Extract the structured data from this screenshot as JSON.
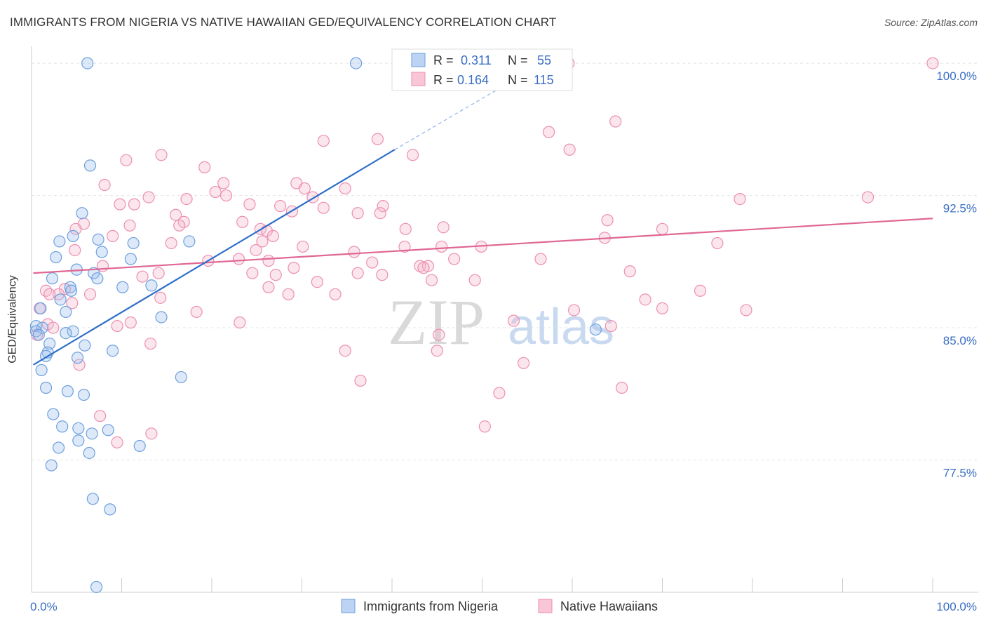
{
  "title": "IMMIGRANTS FROM NIGERIA VS NATIVE HAWAIIAN GED/EQUIVALENCY CORRELATION CHART",
  "source": "Source: ZipAtlas.com",
  "watermark": {
    "zip": "ZIP",
    "atlas": "atlas"
  },
  "legend_top": [
    {
      "r_label": "R =",
      "r_value": "0.311",
      "n_label": "N =",
      "n_value": "55"
    },
    {
      "r_label": "R =",
      "r_value": "0.164",
      "n_label": "N =",
      "n_value": "115"
    }
  ],
  "chart_data": {
    "type": "scatter",
    "title": "IMMIGRANTS FROM NIGERIA VS NATIVE HAWAIIAN GED/EQUIVALENCY CORRELATION CHART",
    "xlabel": "",
    "ylabel": "GED/Equivalency",
    "xlim": [
      0,
      100
    ],
    "ylim": [
      70.0,
      100.8
    ],
    "x_tick_labels": [
      "0.0%",
      "100.0%"
    ],
    "y_ticks": [
      77.5,
      85.0,
      92.5,
      100.0
    ],
    "y_tick_labels": [
      "77.5%",
      "85.0%",
      "92.5%",
      "100.0%"
    ],
    "grid": true,
    "legend_position": "bottom-center",
    "colors": {
      "nigeria": "#6c9fde",
      "hawaiian": "#ec8fb0",
      "nigeria_line": "#2f6fc9",
      "hawaiian_line": "#e06794",
      "tick": "#3a6fc4"
    },
    "series": [
      {
        "name": "Immigrants from Nigeria",
        "r": 0.311,
        "n": 55,
        "trend": {
          "x0": 0.2,
          "y0": 82.9,
          "x1": 40.3,
          "y1": 95.1,
          "dash_to_x": 52.0,
          "dash_to_y": 98.6
        },
        "points": [
          [
            6.2,
            100
          ],
          [
            36.0,
            100
          ],
          [
            6.5,
            94.2
          ],
          [
            5.6,
            91.5
          ],
          [
            4.6,
            90.2
          ],
          [
            3.1,
            89.9
          ],
          [
            7.8,
            89.3
          ],
          [
            2.7,
            89.0
          ],
          [
            11.3,
            89.8
          ],
          [
            11.0,
            88.9
          ],
          [
            7.4,
            90.0
          ],
          [
            2.3,
            87.8
          ],
          [
            6.9,
            88.1
          ],
          [
            5.0,
            88.3
          ],
          [
            7.3,
            87.8
          ],
          [
            4.3,
            87.3
          ],
          [
            4.4,
            87.1
          ],
          [
            10.1,
            87.3
          ],
          [
            13.3,
            87.4
          ],
          [
            3.2,
            86.6
          ],
          [
            1.0,
            86.1
          ],
          [
            3.8,
            85.9
          ],
          [
            0.5,
            85.1
          ],
          [
            1.2,
            85.0
          ],
          [
            0.5,
            84.8
          ],
          [
            0.8,
            84.6
          ],
          [
            4.6,
            84.8
          ],
          [
            3.8,
            84.7
          ],
          [
            14.4,
            85.6
          ],
          [
            2.0,
            84.1
          ],
          [
            5.9,
            84.0
          ],
          [
            1.8,
            83.6
          ],
          [
            1.6,
            83.4
          ],
          [
            9.0,
            83.7
          ],
          [
            5.1,
            83.3
          ],
          [
            1.1,
            82.6
          ],
          [
            16.6,
            82.2
          ],
          [
            1.6,
            81.6
          ],
          [
            4.0,
            81.4
          ],
          [
            5.8,
            81.2
          ],
          [
            2.4,
            80.1
          ],
          [
            3.4,
            79.4
          ],
          [
            5.2,
            79.3
          ],
          [
            8.5,
            79.2
          ],
          [
            6.7,
            79.0
          ],
          [
            5.2,
            78.6
          ],
          [
            3.0,
            78.2
          ],
          [
            12.0,
            78.3
          ],
          [
            6.4,
            77.9
          ],
          [
            2.2,
            77.2
          ],
          [
            6.8,
            75.3
          ],
          [
            8.7,
            74.7
          ],
          [
            7.2,
            70.3
          ],
          [
            17.5,
            89.9
          ],
          [
            62.6,
            84.9
          ]
        ]
      },
      {
        "name": "Native Hawaiians",
        "r": 0.164,
        "n": 115,
        "trend": {
          "x0": 0.2,
          "y0": 88.1,
          "x1": 100,
          "y1": 91.2
        },
        "points": [
          [
            59.6,
            100
          ],
          [
            100,
            100
          ],
          [
            64.8,
            96.7
          ],
          [
            57.4,
            96.1
          ],
          [
            32.4,
            95.6
          ],
          [
            38.4,
            95.7
          ],
          [
            59.7,
            95.1
          ],
          [
            10.5,
            94.5
          ],
          [
            14.4,
            94.8
          ],
          [
            42.3,
            94.8
          ],
          [
            19.2,
            94.1
          ],
          [
            21.3,
            93.2
          ],
          [
            29.4,
            93.2
          ],
          [
            8.1,
            93.1
          ],
          [
            20.4,
            92.7
          ],
          [
            21.6,
            92.5
          ],
          [
            30.3,
            92.9
          ],
          [
            34.8,
            92.9
          ],
          [
            13.0,
            92.4
          ],
          [
            17.2,
            92.3
          ],
          [
            31.2,
            92.4
          ],
          [
            78.6,
            92.3
          ],
          [
            92.8,
            92.4
          ],
          [
            9.8,
            92.0
          ],
          [
            11.4,
            92.0
          ],
          [
            24.2,
            92.0
          ],
          [
            27.6,
            91.9
          ],
          [
            39.0,
            91.9
          ],
          [
            28.9,
            91.6
          ],
          [
            32.4,
            91.8
          ],
          [
            36.2,
            91.5
          ],
          [
            38.7,
            91.5
          ],
          [
            16.0,
            91.4
          ],
          [
            23.4,
            91.0
          ],
          [
            16.9,
            91.0
          ],
          [
            16.4,
            90.8
          ],
          [
            10.9,
            90.8
          ],
          [
            25.4,
            90.6
          ],
          [
            26.1,
            90.5
          ],
          [
            45.7,
            90.7
          ],
          [
            41.5,
            90.6
          ],
          [
            63.9,
            91.1
          ],
          [
            70.0,
            90.6
          ],
          [
            5.8,
            90.9
          ],
          [
            9.0,
            90.2
          ],
          [
            26.8,
            90.2
          ],
          [
            25.6,
            89.9
          ],
          [
            49.9,
            89.6
          ],
          [
            63.6,
            90.1
          ],
          [
            76.1,
            89.8
          ],
          [
            15.5,
            89.8
          ],
          [
            30.1,
            89.6
          ],
          [
            41.4,
            89.6
          ],
          [
            45.5,
            89.6
          ],
          [
            24.9,
            89.4
          ],
          [
            35.8,
            89.3
          ],
          [
            4.9,
            90.6
          ],
          [
            4.8,
            89.4
          ],
          [
            19.6,
            88.8
          ],
          [
            23.0,
            88.9
          ],
          [
            26.3,
            88.8
          ],
          [
            37.8,
            88.7
          ],
          [
            43.1,
            88.5
          ],
          [
            56.5,
            88.9
          ],
          [
            46.9,
            88.9
          ],
          [
            44.0,
            88.5
          ],
          [
            43.5,
            88.4
          ],
          [
            29.1,
            88.4
          ],
          [
            7.9,
            88.5
          ],
          [
            14.1,
            88.1
          ],
          [
            24.5,
            88.1
          ],
          [
            27.1,
            88.0
          ],
          [
            36.2,
            88.1
          ],
          [
            38.9,
            88.0
          ],
          [
            66.4,
            88.2
          ],
          [
            12.3,
            87.9
          ],
          [
            31.7,
            87.6
          ],
          [
            44.4,
            87.7
          ],
          [
            49.2,
            87.7
          ],
          [
            26.3,
            87.3
          ],
          [
            1.6,
            87.1
          ],
          [
            3.7,
            87.2
          ],
          [
            3.0,
            86.9
          ],
          [
            2.0,
            86.9
          ],
          [
            6.5,
            86.9
          ],
          [
            14.3,
            86.7
          ],
          [
            28.5,
            86.9
          ],
          [
            70.0,
            86.1
          ],
          [
            74.2,
            87.1
          ],
          [
            33.7,
            86.9
          ],
          [
            4.5,
            86.4
          ],
          [
            68.1,
            86.6
          ],
          [
            0.9,
            86.1
          ],
          [
            18.3,
            85.9
          ],
          [
            60.2,
            86.0
          ],
          [
            79.3,
            86.0
          ],
          [
            1.8,
            85.2
          ],
          [
            11.0,
            85.3
          ],
          [
            23.1,
            85.3
          ],
          [
            53.5,
            85.4
          ],
          [
            2.4,
            85.0
          ],
          [
            9.5,
            85.1
          ],
          [
            64.3,
            85.1
          ],
          [
            0.6,
            84.6
          ],
          [
            45.2,
            84.6
          ],
          [
            13.2,
            84.1
          ],
          [
            34.8,
            83.7
          ],
          [
            45.0,
            83.7
          ],
          [
            5.3,
            82.9
          ],
          [
            54.6,
            83.0
          ],
          [
            36.5,
            82.0
          ],
          [
            51.9,
            81.3
          ],
          [
            65.5,
            81.6
          ],
          [
            7.6,
            80.0
          ],
          [
            50.3,
            79.4
          ],
          [
            13.3,
            79.0
          ],
          [
            9.5,
            78.5
          ]
        ]
      }
    ]
  },
  "legend_bottom": [
    {
      "label": "Immigrants from Nigeria"
    },
    {
      "label": "Native Hawaiians"
    }
  ]
}
